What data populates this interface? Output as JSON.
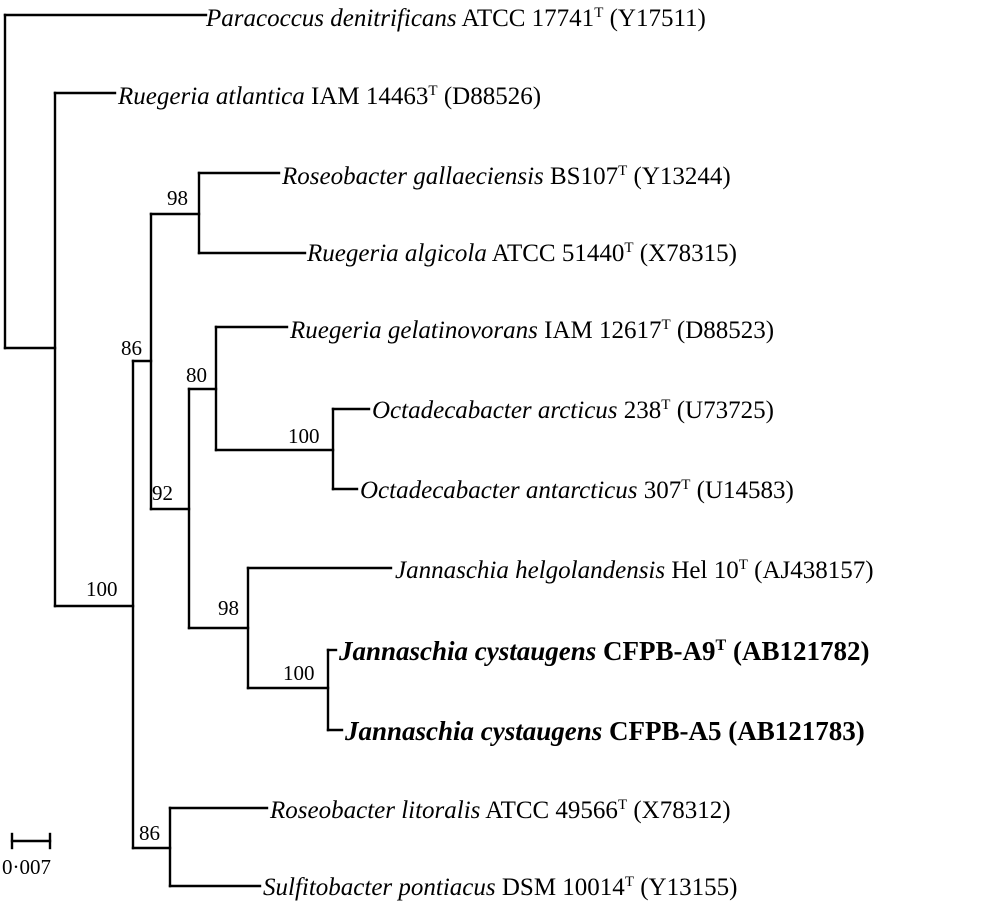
{
  "taxa": [
    {
      "species": "Paracoccus denitrificans",
      "strain": "ATCC 17741",
      "type_strain": true,
      "accession": "(Y17511)",
      "bold": false
    },
    {
      "species": "Ruegeria atlantica",
      "strain": "IAM 14463",
      "type_strain": true,
      "accession": "(D88526)",
      "bold": false
    },
    {
      "species": "Roseobacter gallaeciensis",
      "strain": "BS107",
      "type_strain": true,
      "accession": "(Y13244)",
      "bold": false
    },
    {
      "species": "Ruegeria algicola",
      "strain": "ATCC 51440",
      "type_strain": true,
      "accession": "(X78315)",
      "bold": false
    },
    {
      "species": "Ruegeria gelatinovorans",
      "strain": "IAM 12617",
      "type_strain": true,
      "accession": "(D88523)",
      "bold": false
    },
    {
      "species": "Octadecabacter arcticus",
      "strain": "238",
      "type_strain": true,
      "accession": "(U73725)",
      "bold": false
    },
    {
      "species": "Octadecabacter antarcticus",
      "strain": "307",
      "type_strain": true,
      "accession": "(U14583)",
      "bold": false
    },
    {
      "species": "Jannaschia helgolandensis",
      "strain": "Hel 10",
      "type_strain": true,
      "accession": "(AJ438157)",
      "bold": false
    },
    {
      "species": "Jannaschia cystaugens",
      "strain": "CFPB-A9",
      "type_strain": true,
      "accession": "(AB121782)",
      "bold": true
    },
    {
      "species": "Jannaschia cystaugens",
      "strain": "CFPB-A5",
      "type_strain": false,
      "accession": "(AB121783)",
      "bold": true
    },
    {
      "species": "Roseobacter litoralis",
      "strain": "ATCC 49566",
      "type_strain": true,
      "accession": "(X78312)",
      "bold": false
    },
    {
      "species": "Sulfitobacter pontiacus",
      "strain": "DSM 10014",
      "type_strain": true,
      "accession": "(Y13155)",
      "bold": false
    }
  ],
  "type_marker": "T",
  "bootstrap": [
    {
      "clade": "gallaeciensis-algicola",
      "value": "98"
    },
    {
      "clade": "roseobacter-ruegeria-jannaschia",
      "value": "86"
    },
    {
      "clade": "gelatinovorans-octadecabacter",
      "value": "80"
    },
    {
      "clade": "octadecabacter",
      "value": "100"
    },
    {
      "clade": "gelatinovorans-jannaschia",
      "value": "92"
    },
    {
      "clade": "jannaschia",
      "value": "98"
    },
    {
      "clade": "jannaschia-cystaugens",
      "value": "100"
    },
    {
      "clade": "ingroup",
      "value": "100"
    },
    {
      "clade": "litoralis-pontiacus",
      "value": "86"
    }
  ],
  "scale_bar": {
    "label": "0·007"
  }
}
